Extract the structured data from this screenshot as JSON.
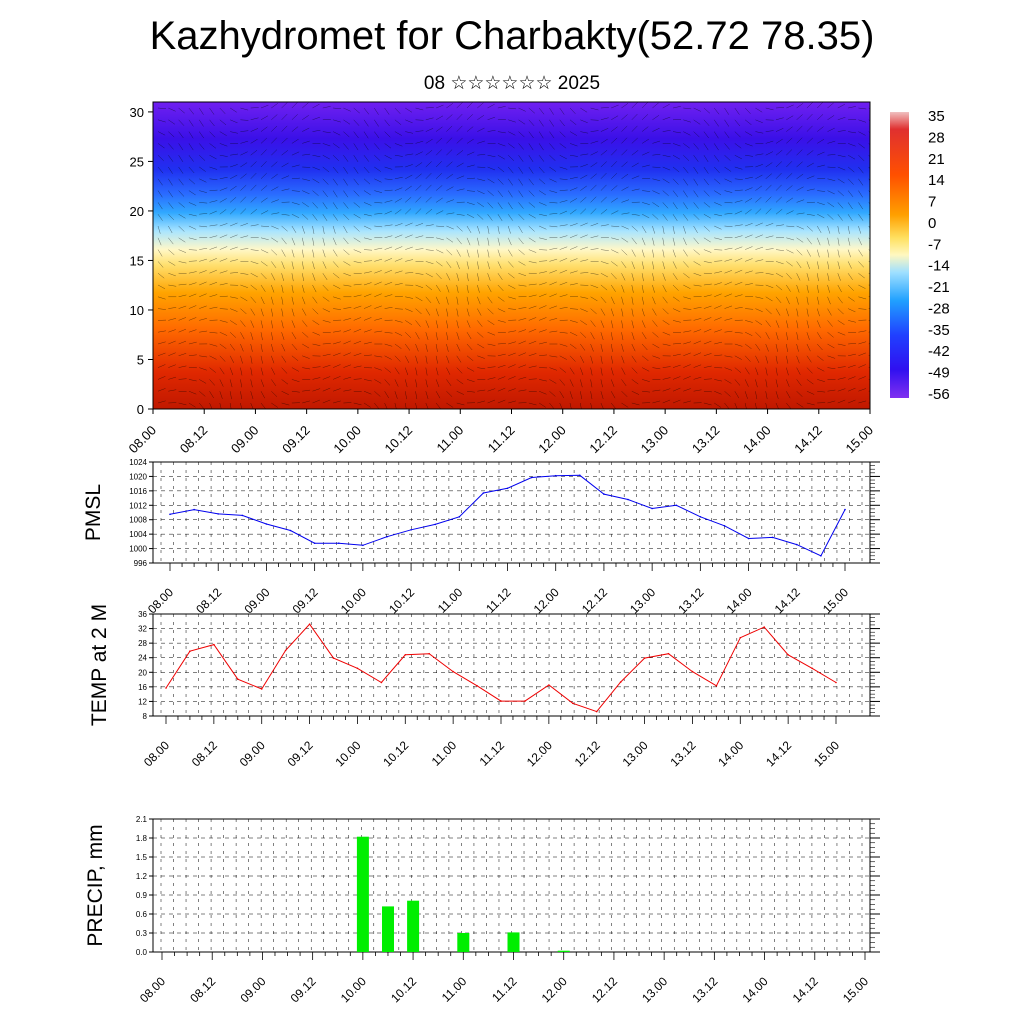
{
  "title": "Kazhydromet for Charbakty(52.72 78.35)",
  "subtitle": "08 ☆☆☆☆☆☆ 2025",
  "x_tick_labels": [
    "08.00",
    "08.12",
    "09.00",
    "09.12",
    "10.00",
    "10.12",
    "11.00",
    "11.12",
    "12.00",
    "12.12",
    "13.00",
    "13.12",
    "14.00",
    "14.12",
    "15.00"
  ],
  "chart_data": [
    {
      "type": "heatmap",
      "title": "",
      "xlabel": "",
      "ylabel": "",
      "y_ticks": [
        0,
        5,
        10,
        15,
        20,
        25,
        30
      ],
      "ylim": [
        0,
        31
      ],
      "colorbar_labels": [
        "35",
        "28",
        "21",
        "14",
        "7",
        "0",
        "-7",
        "-14",
        "-21",
        "-28",
        "-35",
        "-42",
        "-49",
        "-56"
      ],
      "colors": {
        "hot": "#d42000",
        "warm": "#ff7a00",
        "mild": "#ffd84a",
        "pale": "#fff6b0",
        "cool": "#5ac8ff",
        "cold": "#2a40ff",
        "deep": "#5a00ff"
      }
    },
    {
      "type": "line",
      "ylabel": "PMSL",
      "ylim": [
        996,
        1024
      ],
      "y_ticks": [
        996,
        1000,
        1004,
        1008,
        1012,
        1016,
        1020,
        1024
      ],
      "color": "#0000ee",
      "x": [
        0,
        1,
        2,
        3,
        4,
        5,
        6,
        7,
        8,
        9,
        10,
        11,
        12,
        13,
        14,
        15,
        16,
        17,
        18,
        19,
        20,
        21,
        22,
        23,
        24,
        25,
        26,
        27,
        28
      ],
      "values": [
        1009.5,
        1010.8,
        1009.6,
        1009.2,
        1006.8,
        1005.0,
        1001.5,
        1001.5,
        1000.9,
        1003.3,
        1005.2,
        1006.7,
        1008.8,
        1015.4,
        1016.7,
        1019.7,
        1020.2,
        1020.3,
        1015.1,
        1013.6,
        1011.1,
        1012.0,
        1008.8,
        1006.3,
        1002.8,
        1003.1,
        1001.1,
        998.0,
        1010.8
      ]
    },
    {
      "type": "line",
      "ylabel": "TEMP at 2 M",
      "ylim": [
        8,
        36
      ],
      "y_ticks": [
        8,
        12,
        16,
        20,
        24,
        28,
        32,
        36
      ],
      "color": "#ee0000",
      "x": [
        0,
        1,
        2,
        3,
        4,
        5,
        6,
        7,
        8,
        9,
        10,
        11,
        12,
        13,
        14,
        15,
        16,
        17,
        18,
        19,
        20,
        21,
        22,
        23,
        24,
        25,
        26,
        27,
        28
      ],
      "values": [
        15.7,
        25.8,
        27.6,
        18.1,
        15.4,
        26.0,
        33.2,
        23.9,
        21.1,
        17.2,
        24.8,
        25.1,
        20.2,
        16.3,
        12.1,
        12.1,
        16.5,
        11.5,
        9.2,
        17.3,
        23.9,
        25.1,
        20.2,
        16.3,
        29.5,
        32.4,
        24.8,
        21.1,
        17.2
      ]
    },
    {
      "type": "bar",
      "ylabel": "PRECIP, mm",
      "ylim": [
        0,
        2.1
      ],
      "y_ticks": [
        "0.0",
        "0.3",
        "0.6",
        "0.9",
        "1.2",
        "1.5",
        "1.8",
        "2.1"
      ],
      "color": "#00ee00",
      "x": [
        10.0,
        10.25,
        10.5,
        11.0,
        11.5,
        12.0
      ],
      "values": [
        1.82,
        0.72,
        0.81,
        0.3,
        0.31,
        0.02
      ]
    }
  ]
}
